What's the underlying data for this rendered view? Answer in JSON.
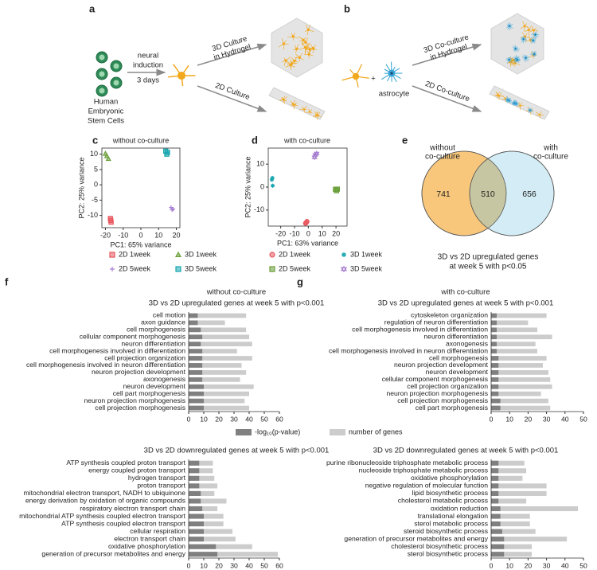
{
  "diagram_a": {
    "label": "a",
    "induction": [
      "neural",
      "induction"
    ],
    "duration": "3 days",
    "cells": [
      "Human",
      "Embryonic",
      "Stem Cells"
    ],
    "culture_3d": [
      "3D Culture",
      "in Hydrogel"
    ],
    "culture_2d": "2D Culture"
  },
  "diagram_b": {
    "label": "b",
    "plus": "+",
    "astrocyte": "astrocyte",
    "culture_3d": [
      "3D Co-culture",
      "in Hydrogel"
    ],
    "culture_2d": "2D Co-culture"
  },
  "chart_data": [
    {
      "type": "scatter",
      "panel": "c",
      "title": "without co-culture",
      "xlabel": "PC1: 65% variance",
      "ylabel": "PC2: 25% variance",
      "xlim": [
        -22,
        22
      ],
      "ylim": [
        -14,
        12
      ],
      "xticks": [
        -20,
        -10,
        0,
        10,
        20
      ],
      "yticks": [
        -10,
        -5,
        0,
        5,
        10
      ],
      "series": [
        {
          "name": "2D 1week",
          "color": "#e8565c",
          "marker": "square",
          "x": [
            -17.2,
            -16.8,
            -17
          ],
          "values": [
            -11,
            -12.2,
            -11.6
          ]
        },
        {
          "name": "3D 1week",
          "color": "#6a9f3a",
          "marker": "triangle",
          "x": [
            -20,
            -19.2,
            -18.3
          ],
          "values": [
            10.2,
            9.4,
            8.5
          ]
        },
        {
          "name": "2D 5week",
          "color": "#a67fd0",
          "marker": "plus",
          "x": [
            17,
            17.6,
            18.2
          ],
          "values": [
            -7.4,
            -8.2,
            -7.9
          ]
        },
        {
          "name": "3D 5week",
          "color": "#1aa7b0",
          "marker": "square",
          "x": [
            14,
            15,
            14.6
          ],
          "values": [
            11,
            10.6,
            10
          ]
        }
      ]
    },
    {
      "type": "scatter",
      "panel": "d",
      "title": "with co-culture",
      "xlabel": "PC1: 63% variance",
      "ylabel": "PC2: 25% variance",
      "xlim": [
        -29,
        28
      ],
      "ylim": [
        -17,
        17
      ],
      "xticks": [
        -20,
        -10,
        0,
        10,
        20
      ],
      "yticks": [
        -10,
        0,
        10
      ],
      "series": [
        {
          "name": "2D 1week",
          "color": "#e8565c",
          "marker": "circle",
          "x": [
            -1.5,
            -1,
            -2
          ],
          "values": [
            -15.5,
            -15,
            -15.8
          ]
        },
        {
          "name": "3D 1week",
          "color": "#1aa7b0",
          "marker": "asterisk",
          "x": [
            -26,
            -26.4,
            -25.8
          ],
          "values": [
            4,
            3.2,
            0.6
          ]
        },
        {
          "name": "2D 5week",
          "color": "#6a9f3a",
          "marker": "square",
          "x": [
            19.6,
            20.4,
            21
          ],
          "values": [
            -1,
            -1.6,
            -0.9
          ]
        },
        {
          "name": "3D 5week",
          "color": "#a67fd0",
          "marker": "star",
          "x": [
            5,
            6,
            4.5
          ],
          "values": [
            14,
            14.6,
            13
          ]
        }
      ]
    },
    {
      "type": "venn",
      "panel": "e",
      "sets": [
        {
          "name": [
            "without",
            "co-culture"
          ],
          "color": "#f8c77b"
        },
        {
          "name": [
            "with",
            "co-culture"
          ],
          "color": "#d3ecf5"
        }
      ],
      "overlap_color": "#c7c6a2",
      "values": [
        741,
        510,
        656
      ],
      "caption": [
        "3D vs 2D upregulated genes",
        "at week 5 with p<0.05"
      ]
    },
    {
      "type": "bar",
      "orientation": "horizontal",
      "panel": "f",
      "title": "without co-culture",
      "subtitle": "3D vs 2D upregulated genes at week 5 with p<0.001",
      "legend": "bottom",
      "xlim": [
        0,
        60
      ],
      "xticks": [
        0,
        10,
        20,
        30,
        40,
        50,
        60
      ],
      "categories": [
        "cell motion",
        "axon guidance",
        "cell morphogenesis",
        "cellular component morphogenesis",
        "neuron differentiation",
        "cell morphogenesis involved in differentiation",
        "cell projection organization",
        "cell morphogenesis involved in neuron differentiation",
        "neuron projection development",
        "axonogenesis",
        "neuron development",
        "cell part morphogenesis",
        "neuron projection morphogenesis",
        "cell projection morphogenesis"
      ],
      "series": [
        {
          "name": "-log₁₀(p-value)",
          "color": "#808080",
          "values": [
            6,
            6,
            8,
            9,
            8,
            9,
            9,
            9,
            9,
            9,
            10,
            10,
            10,
            10
          ]
        },
        {
          "name": "number of genes",
          "color": "#cccccc",
          "values": [
            38,
            24,
            38,
            40,
            42,
            32,
            42,
            35,
            38,
            34,
            43,
            40,
            37,
            40
          ]
        }
      ]
    },
    {
      "type": "bar",
      "orientation": "horizontal",
      "title": "3D vs 2D downregulated genes at week 5 with p<0.001",
      "xlim": [
        0,
        60
      ],
      "xticks": [
        0,
        10,
        20,
        30,
        40,
        50,
        60
      ],
      "categories": [
        "ATP synthesis coupled proton transport",
        "energy coupled proton transport",
        "hydrogen transport",
        "proton transport",
        "mitochondrial electron transport, NADH to ubiquinone",
        "energy derivation by oxidation of organic compounds",
        "respiratory electron transport chain",
        "mitochondrial ATP synthesis coupled electron transport",
        "ATP synthesis coupled electron transport",
        "cellular respiration",
        "electron transport chain",
        "oxidative phosphorylation",
        "generation of precursor metabolites and energy"
      ],
      "series": [
        {
          "name": "-log₁₀(p-value)",
          "color": "#808080",
          "values": [
            7,
            7,
            7,
            7,
            8,
            8,
            9,
            10,
            10,
            10,
            10,
            18,
            19
          ]
        },
        {
          "name": "number of genes",
          "color": "#cccccc",
          "values": [
            16,
            16,
            17,
            19,
            17,
            25,
            19,
            23,
            23,
            29,
            31,
            42,
            59
          ]
        }
      ]
    },
    {
      "type": "bar",
      "orientation": "horizontal",
      "panel": "g",
      "title": "with co-culture",
      "subtitle": "3D vs 2D upregulated genes at week 5 with p<0.001",
      "xlim": [
        0,
        50
      ],
      "xticks": [
        0,
        10,
        20,
        30,
        40,
        50
      ],
      "categories": [
        "cytoskeleton organization",
        "regulation of neuron differentiation",
        "cell morphogenesis involved in differentiation",
        "neuron differentiation",
        "axonogenesis",
        "cell morphogenesis involved in neuron differentiation",
        "cell morphogenesis",
        "neuron projection development",
        "neuron development",
        "cellular component morphogenesis",
        "cell projection organization",
        "neuron projection morphogenesis",
        "cell projection morphogenesis",
        "cell part morphogenesis"
      ],
      "series": [
        {
          "name": "-log₁₀(p-value)",
          "color": "#808080",
          "values": [
            3,
            3,
            3,
            3,
            3,
            3,
            4,
            4,
            4,
            4,
            4,
            4,
            5,
            5
          ]
        },
        {
          "name": "number of genes",
          "color": "#cccccc",
          "values": [
            30,
            20,
            25,
            33,
            24,
            25,
            30,
            28,
            31,
            32,
            33,
            27,
            31,
            32
          ]
        }
      ]
    },
    {
      "type": "bar",
      "orientation": "horizontal",
      "title": "3D vs 2D downregulated genes at week 5 with p<0.001",
      "xlim": [
        0,
        50
      ],
      "xticks": [
        0,
        10,
        20,
        30,
        40,
        50
      ],
      "categories": [
        "purine ribonucleoside triphosphate metabolic process",
        "nucleoside triphosphate metabolic process",
        "oxidative phosphorylation",
        "negative regulation of molecular function",
        "lipid biosynthetic process",
        "cholesterol metabolic process",
        "oxidation reduction",
        "translational elongation",
        "sterol metabolic process",
        "steroid biosynthetic process",
        "generation of precursor metabolites and energy",
        "cholesterol biosynthetic process",
        "sterol biosynthetic process"
      ],
      "series": [
        {
          "name": "-log₁₀(p-value)",
          "color": "#808080",
          "values": [
            4,
            4,
            4,
            4,
            4,
            4,
            5,
            5,
            5,
            6,
            7,
            7,
            7
          ]
        },
        {
          "name": "number of genes",
          "color": "#cccccc",
          "values": [
            18,
            19,
            17,
            30,
            30,
            19,
            47,
            21,
            21,
            24,
            41,
            22,
            22
          ]
        }
      ]
    }
  ]
}
